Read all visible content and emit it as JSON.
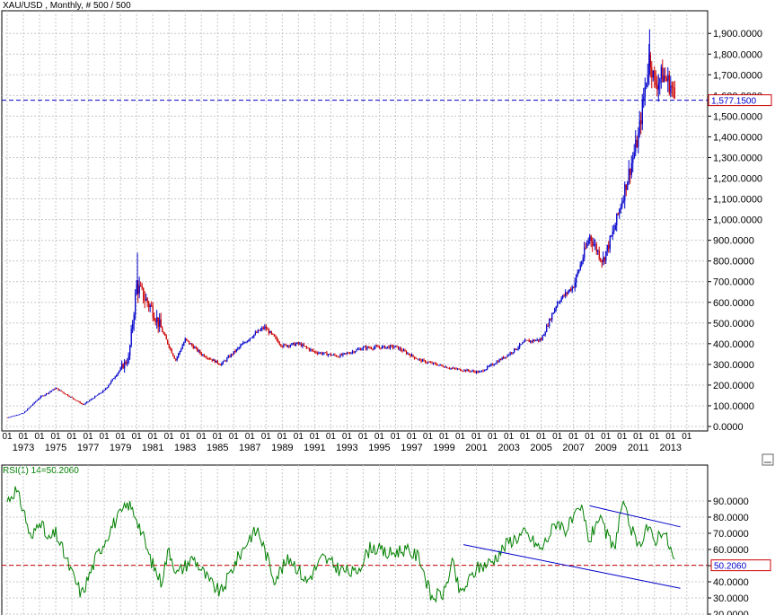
{
  "chart_data": [
    {
      "type": "candlestick",
      "title": "XAU/USD , Monthly, # 500 / 500",
      "ylim": [
        0,
        1940
      ],
      "y_ticks": [
        "0.0000",
        "100.0000",
        "200.0000",
        "300.0000",
        "400.0000",
        "500.0000",
        "600.0000",
        "700.0000",
        "800.0000",
        "900.0000",
        "1,000.0000",
        "1,100.0000",
        "1,200.0000",
        "1,300.0000",
        "1,400.0000",
        "1,500.0000",
        "1,600.0000",
        "1,700.0000",
        "1,800.0000",
        "1,900.0000"
      ],
      "x_tick_top": "01",
      "x_year_labels": [
        "1973",
        "1975",
        "1977",
        "1979",
        "1981",
        "1983",
        "1985",
        "1987",
        "1989",
        "1991",
        "1993",
        "1995",
        "1997",
        "1999",
        "2001",
        "2003",
        "2005",
        "2007",
        "2009",
        "2011",
        "2013"
      ],
      "current_price": 1577.15,
      "current_price_label": "1,577.1500",
      "series": [
        {
          "x": [
            1972.0,
            1973.0,
            1974.0,
            1975.0,
            1976.7,
            1978.0,
            1979.5,
            1980.0,
            1980.5,
            1981.0,
            1982.4,
            1983.0,
            1984.0,
            1985.2,
            1987.0,
            1987.9,
            1989.0,
            1990.0,
            1991.0,
            1992.5,
            1994.0,
            1996.0,
            1997.5,
            1999.5,
            2001.2,
            2002.0,
            2003.0,
            2004.0,
            2005.0,
            2006.0,
            2007.0,
            2008.0,
            2008.8,
            2009.5,
            2010.0,
            2011.0,
            2011.7,
            2012.0,
            2012.5,
            2013.0,
            2013.3
          ],
          "y": [
            43,
            65,
            140,
            185,
            105,
            175,
            330,
            680,
            620,
            560,
            320,
            420,
            350,
            300,
            430,
            480,
            390,
            400,
            360,
            340,
            380,
            385,
            320,
            280,
            262,
            300,
            350,
            410,
            420,
            600,
            680,
            920,
            800,
            950,
            1100,
            1400,
            1800,
            1650,
            1700,
            1650,
            1577
          ]
        }
      ],
      "colors": {
        "up": "#0000cc",
        "down": "#cc0000",
        "price_line": "#0000cc"
      }
    },
    {
      "type": "line",
      "title": "RSI(1) 14=50.2060",
      "ylim": [
        20,
        100
      ],
      "y_ticks": [
        "20.0000",
        "30.0000",
        "40.0000",
        "50.0000",
        "60.0000",
        "70.0000",
        "80.0000",
        "90.0000"
      ],
      "current_value": 50.206,
      "current_value_label": "50.2060",
      "series": [
        {
          "x": [
            1972.0,
            1972.5,
            1973.0,
            1973.5,
            1974.0,
            1974.5,
            1975.0,
            1976.0,
            1976.6,
            1977.5,
            1978.5,
            1979.5,
            1980.0,
            1980.8,
            1981.5,
            1982.0,
            1982.5,
            1983.5,
            1984.5,
            1985.2,
            1986.0,
            1987.0,
            1987.5,
            1988.5,
            1989.5,
            1990.5,
            1991.5,
            1992.5,
            1993.5,
            1994.5,
            1995.5,
            1996.5,
            1997.5,
            1998.2,
            1999.0,
            1999.5,
            2000.0,
            2001.0,
            2002.0,
            2003.0,
            2004.0,
            2005.0,
            2006.0,
            2006.5,
            2007.5,
            2008.0,
            2008.5,
            2009.5,
            2010.0,
            2010.5,
            2011.0,
            2011.5,
            2012.0,
            2012.5,
            2013.0,
            2013.3
          ],
          "y": [
            90,
            97,
            85,
            65,
            80,
            65,
            70,
            45,
            32,
            55,
            75,
            88,
            80,
            55,
            40,
            60,
            45,
            55,
            40,
            33,
            50,
            68,
            72,
            42,
            55,
            40,
            55,
            48,
            45,
            62,
            57,
            60,
            55,
            30,
            33,
            52,
            32,
            48,
            53,
            65,
            70,
            60,
            78,
            72,
            85,
            65,
            80,
            60,
            88,
            75,
            60,
            75,
            65,
            73,
            60,
            50.206
          ]
        }
      ],
      "reference_level": 50.206,
      "trendlines": [
        {
          "x": [
            2008.0,
            2013.6
          ],
          "y": [
            87,
            74
          ]
        },
        {
          "x": [
            2000.2,
            2013.6
          ],
          "y": [
            63,
            36
          ]
        }
      ],
      "colors": {
        "rsi": "#008000",
        "level": "#cc0000",
        "trend": "#0000cc"
      }
    }
  ]
}
